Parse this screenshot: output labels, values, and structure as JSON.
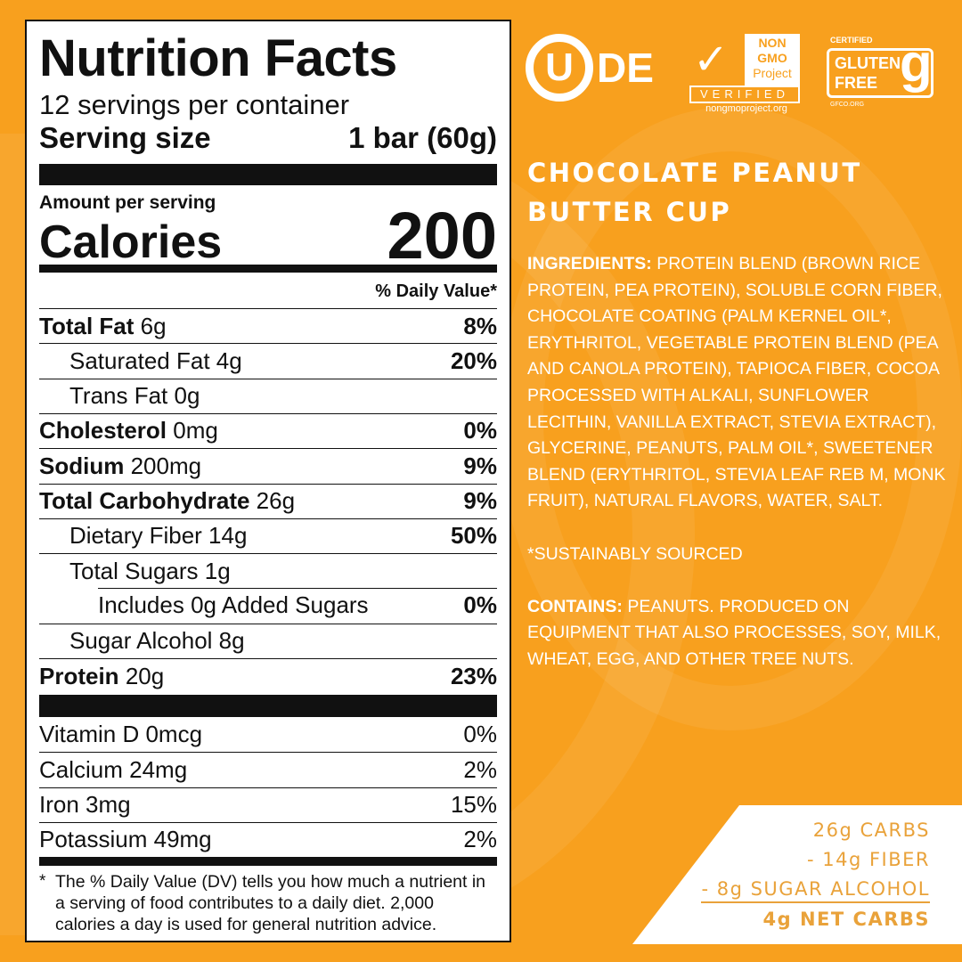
{
  "nutrition": {
    "title": "Nutrition Facts",
    "servings": "12 servings per container",
    "serving_size_label": "Serving size",
    "serving_size_value": "1 bar (60g)",
    "amount_per_serving": "Amount per serving",
    "calories_label": "Calories",
    "calories_value": "200",
    "dv_header": "% Daily Value*",
    "rows": [
      {
        "label": "Total Fat",
        "amount": "6g",
        "dv": "8%"
      },
      {
        "label": "Saturated Fat 4g",
        "dv": "20%"
      },
      {
        "label": "Trans Fat 0g",
        "dv": ""
      },
      {
        "label": "Cholesterol",
        "amount": "0mg",
        "dv": "0%"
      },
      {
        "label": "Sodium",
        "amount": "200mg",
        "dv": "9%"
      },
      {
        "label": "Total Carbohydrate",
        "amount": "26g",
        "dv": "9%"
      },
      {
        "label": "Dietary Fiber 14g",
        "dv": "50%"
      },
      {
        "label": "Total Sugars 1g",
        "dv": ""
      },
      {
        "label": "Includes 0g Added Sugars",
        "dv": "0%"
      },
      {
        "label": "Sugar Alcohol 8g",
        "dv": ""
      },
      {
        "label": "Protein",
        "amount": "20g",
        "dv": "23%"
      }
    ],
    "vitamins": [
      {
        "label": "Vitamin D 0mcg",
        "dv": "0%"
      },
      {
        "label": "Calcium 24mg",
        "dv": "2%"
      },
      {
        "label": "Iron 3mg",
        "dv": "15%"
      },
      {
        "label": "Potassium 49mg",
        "dv": "2%"
      }
    ],
    "footnote_mark": "*",
    "footnote": "The % Daily Value (DV) tells you how much a nutrient in a serving of food contributes to a daily diet. 2,000 calories a day is used for general nutrition advice."
  },
  "logos": {
    "kosher": "U",
    "kosher_suffix": "DE",
    "nongmo": [
      "NON",
      "GMO",
      "Project"
    ],
    "nongmo_verified": "VERIFIED",
    "nongmo_url": "nongmoproject.org",
    "gf_certified": "CERTIFIED",
    "gf_text": [
      "GLUTEN",
      "FREE"
    ],
    "gf_url": "GFCO.ORG"
  },
  "product": {
    "title_line1": "CHOCOLATE PEANUT",
    "title_line2": "BUTTER CUP",
    "ingredients_label": "INGREDIENTS:",
    "ingredients": "PROTEIN BLEND (BROWN RICE PROTEIN, PEA PROTEIN), SOLUBLE CORN FIBER, CHOCOLATE COATING (PALM KERNEL OIL*, ERYTHRITOL, VEGETABLE PROTEIN BLEND (PEA AND CANOLA PROTEIN), TAPIOCA FIBER, COCOA PROCESSED WITH ALKALI, SUNFLOWER LECITHIN, VANILLA EXTRACT, STEVIA EXTRACT), GLYCERINE, PEANUTS, PALM OIL*, SWEETENER BLEND (ERYTHRITOL, STEVIA LEAF REB M, MONK FRUIT), NATURAL FLAVORS, WATER, SALT.",
    "sustainably": "*SUSTAINABLY SOURCED",
    "contains_label": "CONTAINS:",
    "contains": "PEANUTS. PRODUCED ON EQUIPMENT THAT ALSO PROCESSES, SOY, MILK, WHEAT, EGG, AND OTHER TREE NUTS."
  },
  "net_carbs": {
    "line1": "26g CARBS",
    "line2": "- 14g FIBER",
    "line3": "- 8g SUGAR ALCOHOL",
    "total": "4g NET CARBS"
  },
  "colors": {
    "background": "#F8A01E",
    "accent_text": "#E9A23A"
  }
}
